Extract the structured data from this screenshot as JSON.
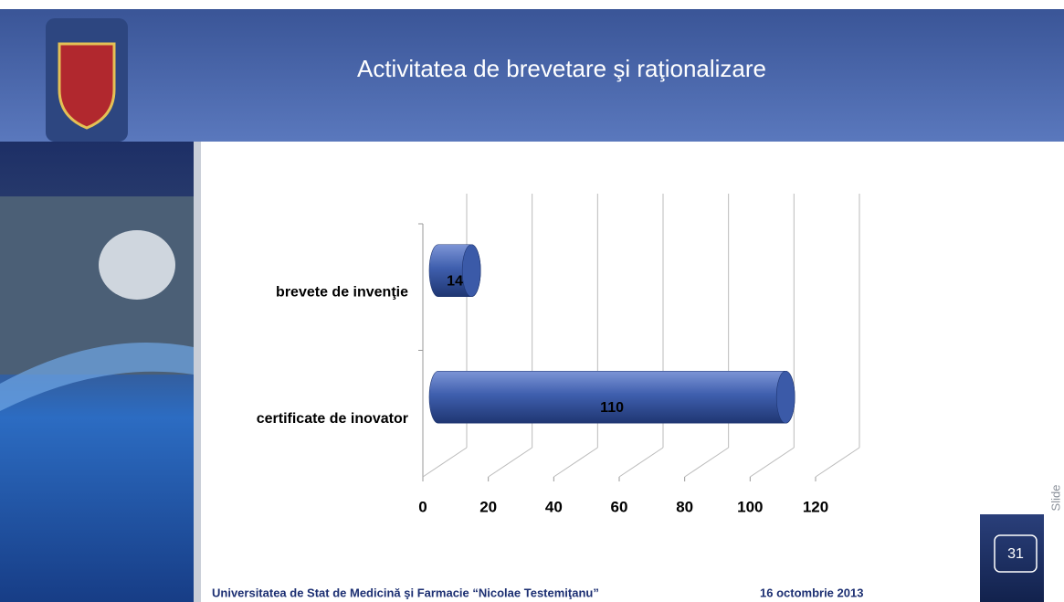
{
  "header": {
    "title": "Activitatea de brevetare şi raţionalizare"
  },
  "chart_data": {
    "type": "bar",
    "orientation": "horizontal",
    "categories": [
      "brevete de invenţie",
      "certificate de inovator"
    ],
    "values": [
      14,
      110
    ],
    "color": "#3f5fae",
    "xlim": [
      0,
      120
    ],
    "xticks": [
      0,
      20,
      40,
      60,
      80,
      100,
      120
    ],
    "grid": true
  },
  "footer": {
    "institution": "Universitatea de Stat de Medicină şi Farmacie “Nicolae Testemiţanu”",
    "date": "16 octombrie 2013"
  },
  "slide": {
    "label": "Slide",
    "number": "31"
  }
}
